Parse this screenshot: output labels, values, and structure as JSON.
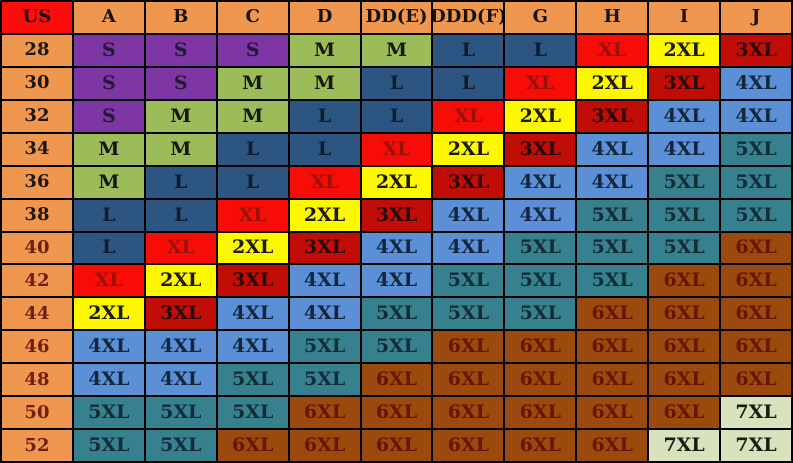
{
  "chart_data": {
    "type": "table",
    "columns": [
      "US",
      "A",
      "B",
      "C",
      "D",
      "DD(E)",
      "DDD(F)",
      "G",
      "H",
      "I",
      "J"
    ],
    "rows": [
      {
        "label": "28",
        "cells": [
          "S",
          "S",
          "S",
          "M",
          "M",
          "L",
          "L",
          "XL",
          "2XL",
          "3XL"
        ]
      },
      {
        "label": "30",
        "cells": [
          "S",
          "S",
          "M",
          "M",
          "L",
          "L",
          "XL",
          "2XL",
          "3XL",
          "4XL"
        ]
      },
      {
        "label": "32",
        "cells": [
          "S",
          "M",
          "M",
          "L",
          "L",
          "XL",
          "2XL",
          "3XL",
          "4XL",
          "4XL"
        ]
      },
      {
        "label": "34",
        "cells": [
          "M",
          "M",
          "L",
          "L",
          "XL",
          "2XL",
          "3XL",
          "4XL",
          "4XL",
          "5XL"
        ]
      },
      {
        "label": "36",
        "cells": [
          "M",
          "L",
          "L",
          "XL",
          "2XL",
          "3XL",
          "4XL",
          "4XL",
          "5XL",
          "5XL"
        ]
      },
      {
        "label": "38",
        "cells": [
          "L",
          "L",
          "XL",
          "2XL",
          "3XL",
          "4XL",
          "4XL",
          "5XL",
          "5XL",
          "5XL"
        ]
      },
      {
        "label": "40",
        "cells": [
          "L",
          "XL",
          "2XL",
          "3XL",
          "4XL",
          "4XL",
          "5XL",
          "5XL",
          "5XL",
          "6XL"
        ]
      },
      {
        "label": "42",
        "cells": [
          "XL",
          "2XL",
          "3XL",
          "4XL",
          "4XL",
          "5XL",
          "5XL",
          "5XL",
          "6XL",
          "6XL"
        ]
      },
      {
        "label": "44",
        "cells": [
          "2XL",
          "3XL",
          "4XL",
          "4XL",
          "5XL",
          "5XL",
          "5XL",
          "6XL",
          "6XL",
          "6XL"
        ]
      },
      {
        "label": "46",
        "cells": [
          "4XL",
          "4XL",
          "4XL",
          "5XL",
          "5XL",
          "6XL",
          "6XL",
          "6XL",
          "6XL",
          "6XL"
        ]
      },
      {
        "label": "48",
        "cells": [
          "4XL",
          "4XL",
          "5XL",
          "5XL",
          "6XL",
          "6XL",
          "6XL",
          "6XL",
          "6XL",
          "6XL"
        ]
      },
      {
        "label": "50",
        "cells": [
          "5XL",
          "5XL",
          "5XL",
          "6XL",
          "6XL",
          "6XL",
          "6XL",
          "6XL",
          "6XL",
          "7XL"
        ]
      },
      {
        "label": "52",
        "cells": [
          "5XL",
          "5XL",
          "6XL",
          "6XL",
          "6XL",
          "6XL",
          "6XL",
          "6XL",
          "7XL",
          "7XL"
        ]
      }
    ],
    "cell_styles": {
      "S": {
        "bg": "#7d36a3",
        "fg": "#221a36"
      },
      "M": {
        "bg": "#9cbc5a",
        "fg": "#17170f"
      },
      "L": {
        "bg": "#2c5681",
        "fg": "#0f1c2c"
      },
      "XL": {
        "bg": "#f70d07",
        "fg": "#971208"
      },
      "2XL": {
        "bg": "#fdf802",
        "fg": "#1b1a10"
      },
      "3XL": {
        "bg": "#c00d06",
        "fg": "#26090a"
      },
      "4XL": {
        "bg": "#5c90d6",
        "fg": "#14263e"
      },
      "5XL": {
        "bg": "#37818f",
        "fg": "#122c38"
      },
      "6XL": {
        "bg": "#9b4a0e",
        "fg": "#6e1200"
      },
      "7XL": {
        "bg": "#d8e2bc",
        "fg": "#181d12"
      }
    },
    "row_label_colors": {
      "28": "#1e160f",
      "30": "#1e160f",
      "32": "#1e160f",
      "34": "#1e160f",
      "36": "#1e160f",
      "38": "#1e160f",
      "40": "#6f2014",
      "42": "#6f2014",
      "44": "#6f2014",
      "46": "#6f2014",
      "48": "#6f2014",
      "50": "#6f2014",
      "52": "#6f2014"
    },
    "legend_position": "none",
    "grid": true
  },
  "colors": {
    "grid_line": "#000000",
    "corner_header_bg": "#fb0d0b",
    "corner_header_fg": "#1c0a08",
    "column_header_bg": "#ef974e",
    "column_header_fg": "#161311",
    "row_header_bg": "#ef974e"
  }
}
